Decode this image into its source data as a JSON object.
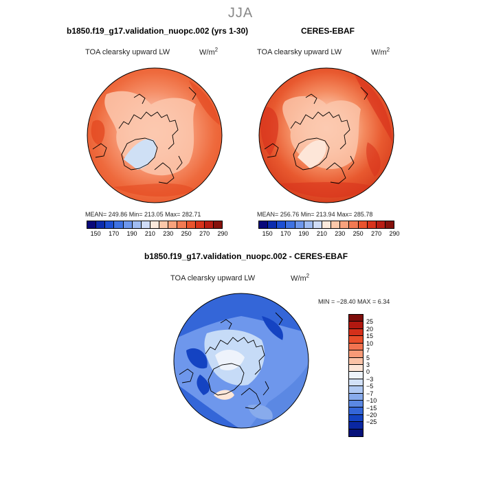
{
  "figure": {
    "season": "JJA",
    "diff_title": "b1850.f19_g17.validation_nuopc.002 - CERES-EBAF",
    "colors": {
      "coast": "#000000",
      "model_ocean": "#ee5a30",
      "model_land": "#f9b79e",
      "model_ice": "#cfe0f5",
      "obs_ocean": "#e64a22",
      "obs_land": "#fbc7ad",
      "diff_ocean": "#3b6ed8",
      "diff_land": "#c6dbf7"
    }
  },
  "panels": {
    "model": {
      "title": "b1850.f19_g17.validation_nuopc.002 (yrs 1-30)",
      "variable": "TOA clearsky upward LW",
      "units_base": "W/m",
      "units_exp": "2",
      "stats": "MEAN=  249.86   Min=  213.05   Max=  282.71"
    },
    "obs": {
      "title": "CERES-EBAF",
      "variable": "TOA clearsky upward LW",
      "units_base": "W/m",
      "units_exp": "2",
      "stats": "MEAN=  256.76   Min=  213.94   Max=  285.78"
    },
    "diff": {
      "variable": "TOA clearsky upward LW",
      "units_base": "W/m",
      "units_exp": "2",
      "stats": "MIN = −28.40  MAX =    6.34"
    }
  },
  "colorbar_abs": {
    "labels": [
      "150",
      "170",
      "190",
      "210",
      "230",
      "250",
      "270",
      "290"
    ],
    "colors": [
      "#08087a",
      "#0b2cae",
      "#1d4fd3",
      "#3f72e2",
      "#6e97ec",
      "#a0bcf2",
      "#cfdcf7",
      "#fbe9dc",
      "#fbc8aa",
      "#f8a27d",
      "#f27a53",
      "#e9532e",
      "#d8331c",
      "#b81d14",
      "#85110c"
    ]
  },
  "colorbar_diff": {
    "labels": [
      "25",
      "20",
      "15",
      "10",
      "7",
      "5",
      "3",
      "0",
      "−3",
      "−5",
      "−7",
      "−10",
      "−15",
      "−20",
      "−25"
    ],
    "colors": [
      "#7d0d0a",
      "#b11810",
      "#d5301a",
      "#ea4e2a",
      "#f27350",
      "#f79a77",
      "#fbc3a7",
      "#fde6d8",
      "#eef3fb",
      "#d2e1f8",
      "#b0c9f3",
      "#88abec",
      "#5b88e3",
      "#3466d8",
      "#1443c2",
      "#0a27a2",
      "#06117a"
    ]
  }
}
